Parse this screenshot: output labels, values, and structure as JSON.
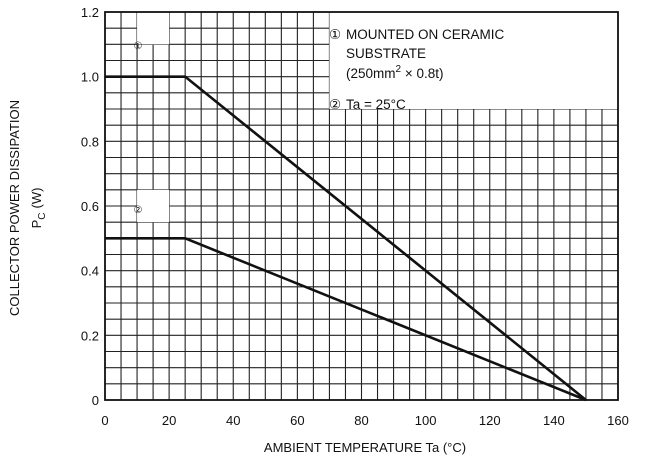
{
  "chart_data": {
    "type": "line",
    "title": "",
    "xlabel": "AMBIENT TEMPERATURE Ta (°C)",
    "ylabel_line1": "COLLECTOR POWER DISSIPATION",
    "ylabel_line2_main": "P",
    "ylabel_line2_sub": "C",
    "ylabel_line2_unit": "(W)",
    "xlim": [
      0,
      160
    ],
    "ylim": [
      0,
      1.2
    ],
    "grid": true,
    "x_tick_values": [
      0,
      20,
      40,
      60,
      80,
      100,
      120,
      140,
      160
    ],
    "x_tick_labels": [
      "0",
      "20",
      "40",
      "60",
      "80",
      "100",
      "120",
      "140",
      "160"
    ],
    "y_tick_values": [
      0,
      0.2,
      0.4,
      0.6,
      0.8,
      1.0,
      1.2
    ],
    "y_tick_labels": [
      "0",
      "0.2",
      "0.4",
      "0.6",
      "0.8",
      "1.0",
      "1.2"
    ],
    "series": [
      {
        "marker": "①",
        "x": [
          0,
          25,
          150
        ],
        "y": [
          1.0,
          1.0,
          0
        ]
      },
      {
        "marker": "②",
        "x": [
          0,
          25,
          150
        ],
        "y": [
          0.5,
          0.5,
          0
        ]
      }
    ],
    "annotations": {
      "note1_marker": "①",
      "note1_line1": "MOUNTED ON CERAMIC",
      "note1_line2": "SUBSTRATE",
      "note1_line3_pre": "(250mm",
      "note1_line3_sup": "2",
      "note1_line3_post": " × 0.8t)",
      "note2_marker": "②",
      "note2_text": "Ta = 25°C"
    }
  }
}
